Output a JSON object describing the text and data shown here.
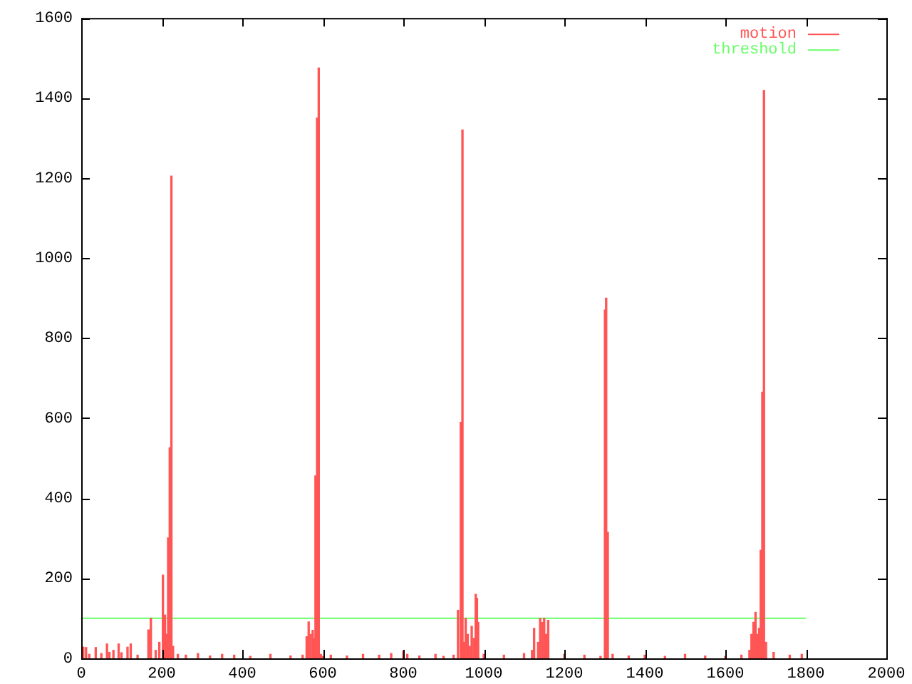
{
  "chart_data": {
    "type": "bar",
    "xlim": [
      0,
      2000
    ],
    "ylim": [
      0,
      1600
    ],
    "xticks": [
      0,
      200,
      400,
      600,
      800,
      1000,
      1200,
      1400,
      1600,
      1800,
      2000
    ],
    "yticks": [
      0,
      200,
      400,
      600,
      800,
      1000,
      1200,
      1400,
      1600
    ],
    "grid": false,
    "legend": "top right",
    "series": [
      {
        "name": "motion",
        "color": "#ff5555",
        "x": [
          5,
          12,
          20,
          36,
          50,
          64,
          70,
          80,
          93,
          100,
          115,
          123,
          140,
          167,
          173,
          185,
          194,
          203,
          208,
          212,
          216,
          220,
          224,
          228,
          240,
          260,
          290,
          320,
          350,
          380,
          420,
          470,
          520,
          550,
          560,
          565,
          570,
          575,
          578,
          582,
          586,
          590,
          595,
          600,
          620,
          660,
          700,
          740,
          770,
          800,
          810,
          840,
          880,
          900,
          925,
          936,
          943,
          947,
          951,
          955,
          960,
          965,
          970,
          975,
          980,
          983,
          986,
          1000,
          1050,
          1100,
          1120,
          1125,
          1135,
          1140,
          1145,
          1150,
          1155,
          1160,
          1200,
          1250,
          1290,
          1301,
          1304,
          1308,
          1320,
          1360,
          1400,
          1450,
          1500,
          1550,
          1600,
          1640,
          1660,
          1665,
          1670,
          1675,
          1680,
          1684,
          1688,
          1692,
          1696,
          1701,
          1720,
          1760,
          1790
        ],
        "values": [
          28,
          27,
          10,
          27,
          12,
          36,
          15,
          20,
          36,
          14,
          28,
          36,
          8,
          71,
          100,
          20,
          40,
          208,
          108,
          60,
          301,
          526,
          1205,
          30,
          10,
          8,
          12,
          6,
          10,
          8,
          5,
          10,
          6,
          8,
          54,
          91,
          60,
          70,
          50,
          456,
          1350,
          1475,
          10,
          5,
          8,
          6,
          10,
          8,
          12,
          18,
          10,
          6,
          10,
          5,
          8,
          120,
          590,
          1320,
          40,
          100,
          60,
          30,
          80,
          50,
          160,
          150,
          90,
          10,
          8,
          12,
          20,
          75,
          40,
          100,
          90,
          100,
          60,
          95,
          10,
          8,
          5,
          870,
          900,
          315,
          10,
          6,
          8,
          5,
          10,
          6,
          5,
          8,
          20,
          60,
          90,
          115,
          60,
          75,
          270,
          665,
          1419,
          40,
          15,
          8,
          10
        ]
      },
      {
        "name": "threshold",
        "color": "#66ff66",
        "type": "line",
        "x": [
          0,
          1800
        ],
        "values": [
          100,
          100
        ]
      }
    ]
  }
}
